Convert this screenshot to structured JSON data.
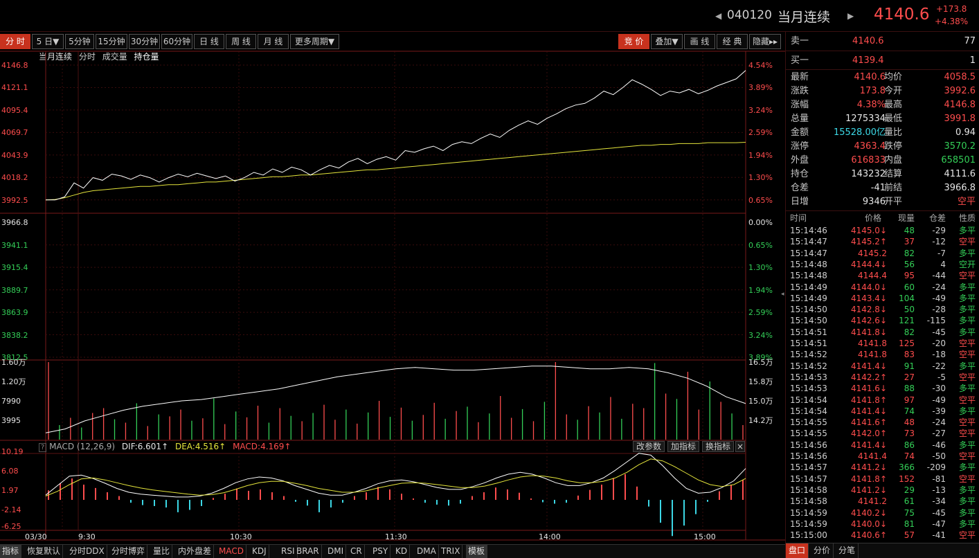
{
  "header": {
    "code": "040120",
    "name": "当月连续",
    "price": "4140.6",
    "change": "+173.8",
    "change_pct": "+4.38%"
  },
  "toolbar": {
    "left_items": [
      {
        "label": "分 时",
        "active": true
      },
      {
        "label": "5 日▼",
        "active": false
      },
      {
        "label": "5分钟",
        "active": false
      },
      {
        "label": "15分钟",
        "active": false
      },
      {
        "label": "30分钟",
        "active": false
      },
      {
        "label": "60分钟",
        "active": false
      },
      {
        "label": "日 线",
        "active": false
      },
      {
        "label": "周 线",
        "active": false
      },
      {
        "label": "月 线",
        "active": false
      },
      {
        "label": "更多周期▼",
        "active": false
      }
    ],
    "right_items": [
      {
        "label": "竞 价",
        "active": true
      },
      {
        "label": "叠加▼",
        "active": false
      },
      {
        "label": "画 线",
        "active": false
      },
      {
        "label": "经 典",
        "active": false
      },
      {
        "label": "隐藏▸▸",
        "active": false
      }
    ]
  },
  "legend": {
    "name": "当月连续",
    "period": "分时",
    "volume": "成交量",
    "open_interest": "持仓量"
  },
  "price_axis": {
    "left": [
      "4146.8",
      "4121.1",
      "4095.4",
      "4069.7",
      "4043.9",
      "4018.2",
      "3992.5",
      "3966.8",
      "3941.1",
      "3915.4",
      "3889.7",
      "3863.9",
      "3838.2",
      "3812.5"
    ],
    "right": [
      "4.54%",
      "3.89%",
      "3.24%",
      "2.59%",
      "1.94%",
      "1.30%",
      "0.65%",
      "0.00%",
      "0.65%",
      "1.30%",
      "1.94%",
      "2.59%",
      "3.24%",
      "3.89%"
    ]
  },
  "volume_axis": {
    "left": [
      "1.60万",
      "1.20万",
      "7990",
      "3995"
    ],
    "right": [
      "16.5万",
      "15.8万",
      "15.0万",
      "14.2万"
    ]
  },
  "macd": {
    "header": "MACD (12,26,9)",
    "dif_label": "DIF:6.601↑",
    "dea_label": "DEA:4.516↑",
    "macd_label": "MACD:4.169↑",
    "buttons": [
      "改参数",
      "加指标",
      "换指标",
      "×"
    ],
    "axis": [
      "10.19",
      "6.08",
      "1.97",
      "-2.14",
      "-6.25"
    ]
  },
  "time_axis": [
    "03/30",
    "9:30",
    "10:30",
    "11:30",
    "14:00",
    "15:00"
  ],
  "bottom_tabs": [
    {
      "label": "指标",
      "state": "sel"
    },
    {
      "label": "恢复默认",
      "state": ""
    },
    {
      "label": "分时DDX",
      "state": ""
    },
    {
      "label": "分时博弈",
      "state": ""
    },
    {
      "label": "量比",
      "state": ""
    },
    {
      "label": "内外盘差",
      "state": ""
    },
    {
      "label": "MACD",
      "state": "active"
    },
    {
      "label": "KDJ",
      "state": ""
    },
    {
      "label": "RSI",
      "state": ""
    },
    {
      "label": "BRAR",
      "state": ""
    },
    {
      "label": "DMI",
      "state": ""
    },
    {
      "label": "CR",
      "state": ""
    },
    {
      "label": "PSY",
      "state": ""
    },
    {
      "label": "KD",
      "state": ""
    },
    {
      "label": "DMA",
      "state": ""
    },
    {
      "label": "TRIX",
      "state": ""
    },
    {
      "label": "模板",
      "state": "sel"
    }
  ],
  "quote": {
    "sell1_label": "卖一",
    "sell1_price": "4140.6",
    "sell1_vol": "77",
    "buy1_label": "买一",
    "buy1_price": "4139.4",
    "buy1_vol": "1",
    "rows": [
      {
        "l1": "最新",
        "v1": "4140.6",
        "c1": "red",
        "l2": "均价",
        "v2": "4058.5",
        "c2": "red"
      },
      {
        "l1": "涨跌",
        "v1": "173.8",
        "c1": "red",
        "l2": "今开",
        "v2": "3992.6",
        "c2": "red"
      },
      {
        "l1": "涨幅",
        "v1": "4.38%",
        "c1": "red",
        "l2": "最高",
        "v2": "4146.8",
        "c2": "red"
      },
      {
        "l1": "总量",
        "v1": "1275334",
        "c1": "wht",
        "l2": "最低",
        "v2": "3991.8",
        "c2": "red"
      },
      {
        "l1": "金额",
        "v1": "15528.00亿",
        "c1": "cyn",
        "l2": "量比",
        "v2": "0.94",
        "c2": "wht"
      },
      {
        "l1": "涨停",
        "v1": "4363.4",
        "c1": "red",
        "l2": "跌停",
        "v2": "3570.2",
        "c2": "grn"
      },
      {
        "l1": "外盘",
        "v1": "616833",
        "c1": "red",
        "l2": "内盘",
        "v2": "658501",
        "c2": "grn"
      },
      {
        "l1": "持仓",
        "v1": "143232",
        "c1": "wht",
        "l2": "结算",
        "v2": "4111.6",
        "c2": "wht"
      },
      {
        "l1": "仓差",
        "v1": "-41",
        "c1": "wht",
        "l2": "前结",
        "v2": "3966.8",
        "c2": "wht"
      },
      {
        "l1": "日增",
        "v1": "9346",
        "c1": "wht",
        "l2": "开平",
        "v2": "空平",
        "c2": "red"
      }
    ]
  },
  "ticks": {
    "headers": [
      "时间",
      "价格",
      "现量",
      "仓差",
      "性质"
    ],
    "rows": [
      {
        "t": "15:14:46",
        "p": "4145.0↓",
        "v": "48",
        "vc": "grn",
        "d": "-29",
        "n": "多平",
        "nc": "grn"
      },
      {
        "t": "15:14:47",
        "p": "4145.2↑",
        "v": "37",
        "vc": "red",
        "d": "-12",
        "n": "空平",
        "nc": "red"
      },
      {
        "t": "15:14:47",
        "p": "4145.2",
        "v": "82",
        "vc": "grn",
        "d": "-7",
        "n": "多平",
        "nc": "grn"
      },
      {
        "t": "15:14:48",
        "p": "4144.4↓",
        "v": "56",
        "vc": "grn",
        "d": "4",
        "n": "空开",
        "nc": "grn"
      },
      {
        "t": "15:14:48",
        "p": "4144.4",
        "v": "95",
        "vc": "red",
        "d": "-44",
        "n": "空平",
        "nc": "red"
      },
      {
        "t": "15:14:49",
        "p": "4144.0↓",
        "v": "60",
        "vc": "grn",
        "d": "-24",
        "n": "多平",
        "nc": "grn"
      },
      {
        "t": "15:14:49",
        "p": "4143.4↓",
        "v": "104",
        "vc": "grn",
        "d": "-49",
        "n": "多平",
        "nc": "grn"
      },
      {
        "t": "15:14:50",
        "p": "4142.8↓",
        "v": "50",
        "vc": "grn",
        "d": "-28",
        "n": "多平",
        "nc": "grn"
      },
      {
        "t": "15:14:50",
        "p": "4142.6↓",
        "v": "121",
        "vc": "grn",
        "d": "-115",
        "n": "多平",
        "nc": "grn"
      },
      {
        "t": "15:14:51",
        "p": "4141.8↓",
        "v": "82",
        "vc": "grn",
        "d": "-45",
        "n": "多平",
        "nc": "grn"
      },
      {
        "t": "15:14:51",
        "p": "4141.8",
        "v": "125",
        "vc": "red",
        "d": "-20",
        "n": "空平",
        "nc": "red"
      },
      {
        "t": "15:14:52",
        "p": "4141.8",
        "v": "83",
        "vc": "red",
        "d": "-18",
        "n": "空平",
        "nc": "red"
      },
      {
        "t": "15:14:52",
        "p": "4141.4↓",
        "v": "91",
        "vc": "grn",
        "d": "-22",
        "n": "多平",
        "nc": "grn"
      },
      {
        "t": "15:14:53",
        "p": "4142.2↑",
        "v": "27",
        "vc": "red",
        "d": "-5",
        "n": "空平",
        "nc": "red"
      },
      {
        "t": "15:14:53",
        "p": "4141.6↓",
        "v": "88",
        "vc": "grn",
        "d": "-30",
        "n": "多平",
        "nc": "grn"
      },
      {
        "t": "15:14:54",
        "p": "4141.8↑",
        "v": "97",
        "vc": "red",
        "d": "-49",
        "n": "空平",
        "nc": "red"
      },
      {
        "t": "15:14:54",
        "p": "4141.4↓",
        "v": "74",
        "vc": "grn",
        "d": "-39",
        "n": "多平",
        "nc": "grn"
      },
      {
        "t": "15:14:55",
        "p": "4141.6↑",
        "v": "48",
        "vc": "red",
        "d": "-24",
        "n": "空平",
        "nc": "red"
      },
      {
        "t": "15:14:55",
        "p": "4142.0↑",
        "v": "73",
        "vc": "red",
        "d": "-27",
        "n": "空平",
        "nc": "red"
      },
      {
        "t": "15:14:56",
        "p": "4141.4↓",
        "v": "86",
        "vc": "grn",
        "d": "-46",
        "n": "多平",
        "nc": "grn"
      },
      {
        "t": "15:14:56",
        "p": "4141.4",
        "v": "74",
        "vc": "red",
        "d": "-50",
        "n": "空平",
        "nc": "red"
      },
      {
        "t": "15:14:57",
        "p": "4141.2↓",
        "v": "366",
        "vc": "grn",
        "d": "-209",
        "n": "多平",
        "nc": "grn"
      },
      {
        "t": "15:14:57",
        "p": "4141.8↑",
        "v": "152",
        "vc": "red",
        "d": "-81",
        "n": "空平",
        "nc": "red"
      },
      {
        "t": "15:14:58",
        "p": "4141.2↓",
        "v": "29",
        "vc": "grn",
        "d": "-13",
        "n": "多平",
        "nc": "grn"
      },
      {
        "t": "15:14:58",
        "p": "4141.2",
        "v": "61",
        "vc": "grn",
        "d": "-34",
        "n": "多平",
        "nc": "grn"
      },
      {
        "t": "15:14:59",
        "p": "4140.2↓",
        "v": "75",
        "vc": "grn",
        "d": "-45",
        "n": "多平",
        "nc": "grn"
      },
      {
        "t": "15:14:59",
        "p": "4140.0↓",
        "v": "81",
        "vc": "grn",
        "d": "-47",
        "n": "多平",
        "nc": "grn"
      },
      {
        "t": "15:15:00",
        "p": "4140.6↑",
        "v": "57",
        "vc": "red",
        "d": "-41",
        "n": "空平",
        "nc": "red"
      }
    ]
  },
  "rp_tabs": [
    {
      "label": "盘口",
      "active": true
    },
    {
      "label": "分价",
      "active": false
    },
    {
      "label": "分笔",
      "active": false
    }
  ],
  "colors": {
    "up": "#ff4d4d",
    "down": "#34d058",
    "avg": "#e6e63c",
    "price_line": "#ffffff",
    "macd_neg": "#3cd8e6"
  },
  "chart_data": {
    "type": "line",
    "title": "当月连续",
    "prev_settle": 3966.8,
    "ylim": [
      3812.5,
      4146.8
    ],
    "price_series": [
      3992.5,
      3992.5,
      3996,
      4012,
      4006,
      4018,
      4015,
      4022,
      4020,
      4016,
      4021,
      4018,
      4013,
      4018,
      4022,
      4019,
      4023,
      4020,
      4017,
      4020,
      4014,
      4018,
      4024,
      4021,
      4028,
      4024,
      4030,
      4027,
      4021,
      4027,
      4032,
      4029,
      4036,
      4040,
      4034,
      4039,
      4042,
      4038,
      4049,
      4047,
      4051,
      4054,
      4049,
      4056,
      4059,
      4057,
      4063,
      4068,
      4064,
      4072,
      4078,
      4083,
      4079,
      4086,
      4091,
      4097,
      4101,
      4103,
      4109,
      4117,
      4113,
      4121,
      4130,
      4125,
      4119,
      4112,
      4117,
      4115,
      4119,
      4114,
      4118,
      4123,
      4127,
      4131,
      4140.6
    ],
    "avg_series": [
      3992.5,
      3993,
      3995,
      3998,
      4001,
      4003,
      4004,
      4005,
      4006,
      4007,
      4008,
      4008,
      4009,
      4010,
      4010,
      4011,
      4012,
      4013,
      4013,
      4014,
      4015,
      4016,
      4017,
      4018,
      4019,
      4019,
      4020,
      4021,
      4021,
      4022,
      4023,
      4024,
      4025,
      4026,
      4027,
      4027,
      4028,
      4029,
      4030,
      4031,
      4032,
      4033,
      4034,
      4035,
      4036,
      4037,
      4038,
      4039,
      4040,
      4041,
      4042,
      4043,
      4044,
      4045,
      4046,
      4047,
      4048,
      4049,
      4050,
      4051,
      4052,
      4053,
      4054,
      4055,
      4055,
      4056,
      4056,
      4057,
      4057,
      4057,
      4058,
      4058,
      4058,
      4058,
      4058.5
    ],
    "volume_max": 16000,
    "volume_bars": [
      16000,
      3000,
      4500,
      2500,
      5500,
      6500,
      4200,
      3500,
      7500,
      2800,
      5200,
      4800,
      6200,
      3900,
      4400,
      8500,
      3200,
      5800,
      4600,
      7000,
      3500,
      6500,
      4900,
      3800,
      5500,
      7200,
      4100,
      6200,
      3300,
      5600,
      8000,
      4700,
      6600,
      3900,
      5100,
      7600,
      4300,
      5900,
      6800,
      3600,
      5400,
      9000,
      4500,
      6300,
      3800,
      7800,
      16000,
      5200,
      4100,
      6900,
      5600,
      8800,
      4300,
      7400,
      6500,
      15800,
      9500,
      8400,
      14000,
      6200,
      12000,
      7800,
      5400,
      3000
    ],
    "volume_up": [
      true,
      false,
      true,
      false,
      true,
      true,
      false,
      true,
      false,
      true,
      false,
      true,
      true,
      false,
      true,
      false,
      true,
      false,
      true,
      true,
      false,
      true,
      false,
      true,
      false,
      true,
      true,
      false,
      true,
      false,
      true,
      false,
      true,
      false,
      true,
      true,
      false,
      true,
      false,
      true,
      false,
      true,
      true,
      false,
      true,
      false,
      true,
      true,
      false,
      true,
      false,
      true,
      false,
      true,
      true,
      false,
      true,
      false,
      true,
      true,
      false,
      true,
      false,
      true
    ],
    "oi_series": [
      142000,
      142300,
      142900,
      143300,
      143700,
      144000,
      144200,
      144400,
      144500,
      144700,
      144900,
      145100,
      145300,
      145600,
      145900,
      146200,
      146400,
      146600,
      146800,
      146900,
      146800,
      146700,
      146700,
      146800,
      146900,
      147000,
      147000,
      146900,
      146800,
      146800,
      146900,
      146800,
      146500,
      146100,
      145500,
      144700,
      144200
    ],
    "macd_hist": [
      2.0,
      3.5,
      4.5,
      3.2,
      2.5,
      1.6,
      0.8,
      -0.6,
      -1.1,
      -1.3,
      -1.6,
      -2.6,
      -2.1,
      -1.3,
      0.4,
      1.3,
      2.4,
      1.9,
      2.2,
      1.6,
      0.8,
      -0.4,
      -1.2,
      -2.6,
      -1.6,
      -0.6,
      0.8,
      1.6,
      2.7,
      2.2,
      1.3,
      0.3,
      -0.6,
      -1.0,
      -1.2,
      -0.8,
      0.8,
      1.6,
      2.6,
      2.2,
      1.5,
      0.3,
      -0.5,
      -0.8,
      -0.6,
      0.9,
      2.1,
      3.2,
      4.6,
      5.4,
      2.8,
      -1.4,
      -4.8,
      -7.6,
      -5.4,
      -3.0,
      -0.4,
      1.8,
      3.2,
      4.2
    ],
    "dif_series": [
      1.0,
      3.0,
      5.0,
      5.2,
      4.5,
      3.5,
      2.4,
      1.6,
      1.2,
      1.0,
      0.8,
      0.6,
      0.6,
      0.8,
      1.4,
      2.4,
      3.6,
      4.4,
      4.8,
      4.6,
      4.0,
      3.0,
      2.2,
      1.4,
      1.0,
      1.0,
      1.6,
      2.4,
      3.4,
      4.0,
      4.2,
      3.8,
      3.2,
      2.6,
      2.2,
      2.2,
      2.8,
      3.6,
      4.6,
      5.4,
      5.8,
      5.4,
      4.6,
      3.6,
      3.0,
      3.0,
      3.6,
      4.6,
      6.2,
      8.0,
      9.8,
      9.4,
      7.2,
      4.6,
      2.4,
      1.4,
      1.6,
      2.6,
      4.0,
      6.6
    ],
    "dea_series": [
      0.8,
      1.8,
      3.2,
      4.4,
      4.6,
      4.2,
      3.6,
      3.0,
      2.5,
      2.1,
      1.8,
      1.5,
      1.2,
      1.0,
      1.1,
      1.5,
      2.2,
      3.0,
      3.6,
      3.9,
      3.9,
      3.5,
      3.0,
      2.4,
      2.0,
      1.6,
      1.6,
      1.9,
      2.5,
      3.0,
      3.5,
      3.6,
      3.5,
      3.2,
      2.9,
      2.6,
      2.6,
      2.9,
      3.5,
      4.2,
      4.8,
      5.1,
      5.0,
      4.6,
      4.0,
      3.6,
      3.6,
      3.9,
      4.6,
      5.8,
      7.4,
      8.6,
      8.2,
      7.0,
      5.6,
      4.2,
      3.2,
      2.8,
      3.2,
      4.5
    ],
    "macd_ylim": [
      -6.25,
      10.19
    ]
  }
}
